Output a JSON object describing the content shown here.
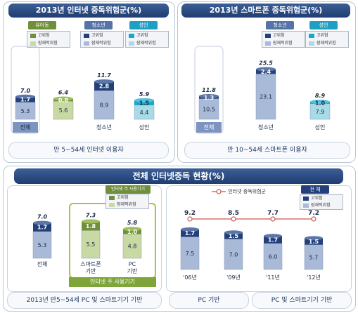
{
  "colors": {
    "title_bg": "#2f4f85",
    "high_risk": "#24407a",
    "potential_risk": "#9fb1d1",
    "green": "#8aa84f",
    "cyan": "#1aa8c8",
    "cyan_light": "#a8dbe6",
    "adult": "#34b3d4"
  },
  "panels": {
    "top_left": {
      "title": "2013년 인터넷 중독위험군(%)",
      "caption": "만 5~54세 인터넷 이용자"
    },
    "top_right": {
      "title": "2013년 스마트폰 중독위험군(%)",
      "caption": "만 10~54세 스마트폰 이용자"
    },
    "bottom": {
      "title": "전체 인터넷중독 현황(%)",
      "caption_left": "2013년 만5~54세 PC 및 스마트기기 기반",
      "caption_mid": "PC 기반",
      "caption_right": "PC 및 스마트기기 기반",
      "device_tag": "인터넷 주 사용기기",
      "device_tag_bottom": "인터넷 주 사용기기"
    }
  },
  "legends": {
    "high": "고위험",
    "potential": "잠재적위험",
    "tag_child": "유아동",
    "tag_teen": "청소년",
    "tag_adult": "성인",
    "tag_total": "전 체",
    "line_legend": "인터넷 중독위험군"
  },
  "chart_data": [
    {
      "type": "bar",
      "title": "2013년 인터넷 중독위험군(%)",
      "categories": [
        "전체",
        "유아동",
        "청소년",
        "성인"
      ],
      "series": [
        {
          "name": "고위험",
          "values": [
            1.7,
            0.8,
            2.8,
            1.5
          ]
        },
        {
          "name": "잠재적위험",
          "values": [
            5.3,
            5.6,
            8.9,
            4.4
          ]
        }
      ],
      "totals": [
        7.0,
        6.4,
        11.7,
        5.9
      ]
    },
    {
      "type": "bar",
      "title": "2013년 스마트폰 중독위험군(%)",
      "categories": [
        "전체",
        "청소년",
        "성인"
      ],
      "series": [
        {
          "name": "고위험",
          "values": [
            1.3,
            2.4,
            1.0
          ]
        },
        {
          "name": "잠재적위험",
          "values": [
            10.5,
            23.1,
            7.9
          ]
        }
      ],
      "totals": [
        11.8,
        25.5,
        8.9
      ]
    },
    {
      "type": "bar",
      "title": "전체 인터넷중독 현황(%)",
      "categories": [
        "전체",
        "스마트폰\n기반",
        "PC\n기반"
      ],
      "series": [
        {
          "name": "고위험",
          "values": [
            1.7,
            1.8,
            1.0
          ]
        },
        {
          "name": "잠재적위험",
          "values": [
            5.3,
            5.5,
            4.8
          ]
        }
      ],
      "totals": [
        7.0,
        7.3,
        5.8
      ]
    },
    {
      "type": "bar",
      "categories": [
        "'06년",
        "'09년",
        "'11년",
        "'12년"
      ],
      "series": [
        {
          "name": "고위험",
          "values": [
            1.7,
            1.5,
            1.7,
            1.5
          ]
        },
        {
          "name": "잠재적위험",
          "values": [
            7.5,
            7.0,
            6.0,
            5.7
          ]
        },
        {
          "name": "인터넷 중독위험군",
          "type": "line",
          "values": [
            9.2,
            8.5,
            7.7,
            7.2
          ]
        }
      ]
    }
  ]
}
